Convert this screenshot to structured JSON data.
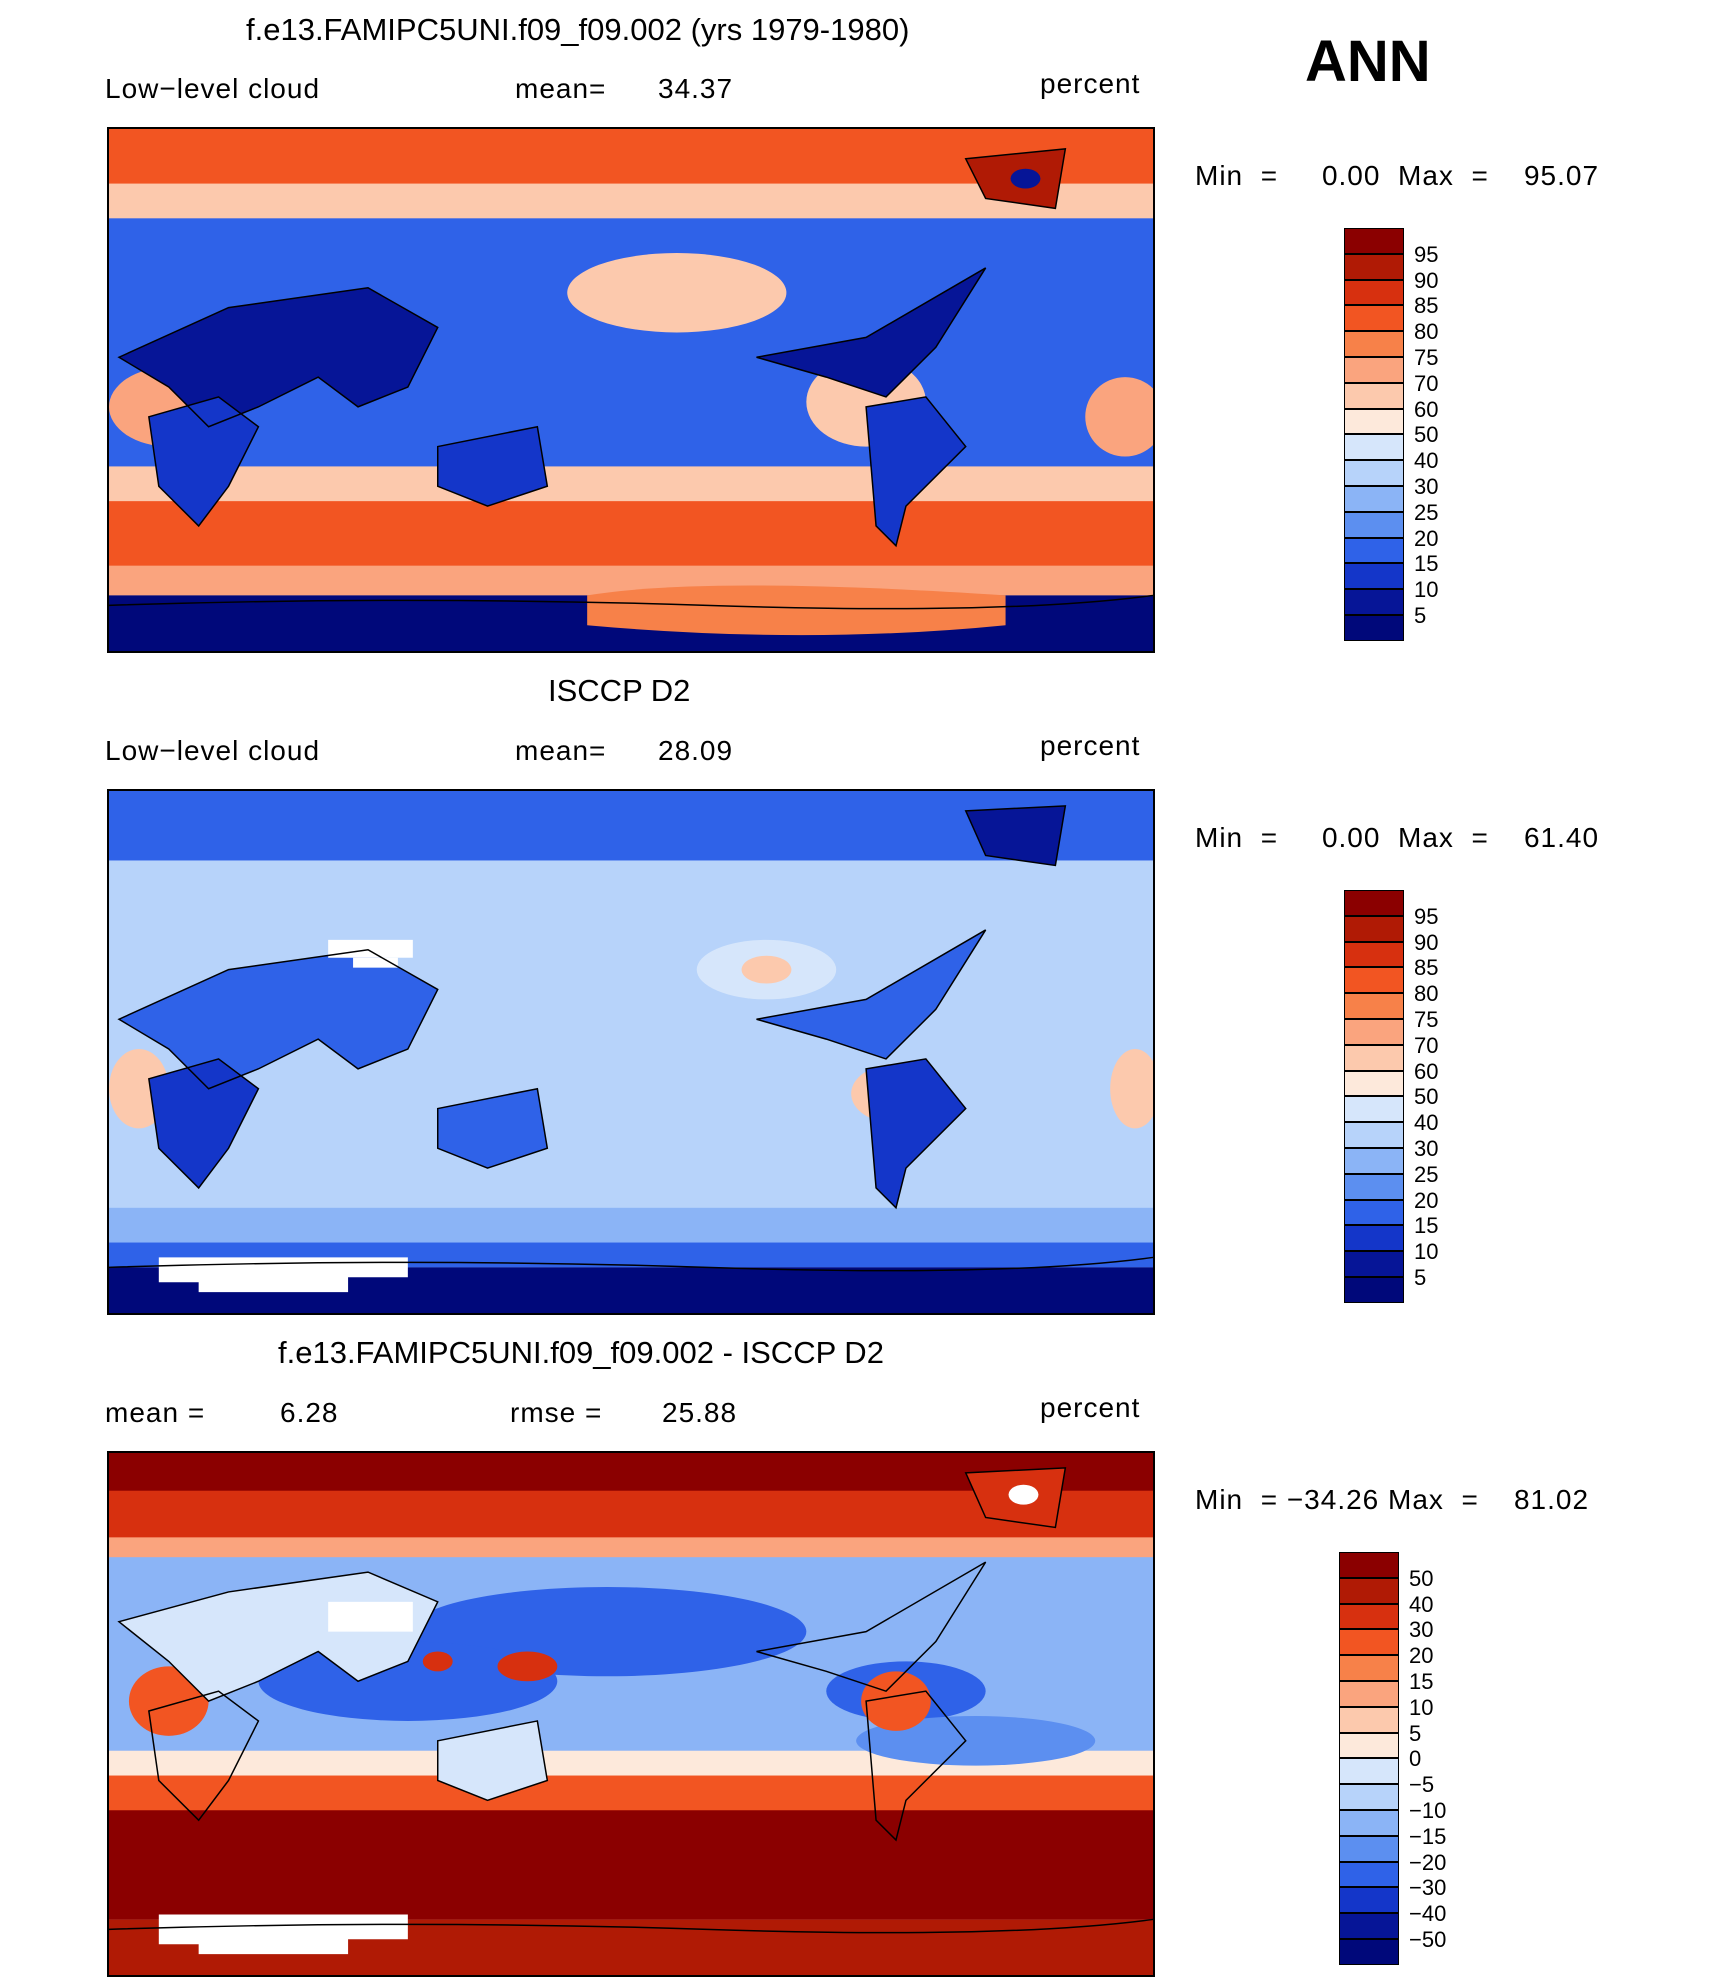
{
  "season": "ANN",
  "panels": [
    {
      "title": "f.e13.FAMIPC5UNI.f09_f09.002 (yrs 1979-1980)",
      "left_label": "Low−level cloud",
      "stat_label": "mean=",
      "stat_value": "34.37",
      "units": "percent",
      "minmax": {
        "min_label": "Min",
        "eq1": "=",
        "min": "0.00",
        "max_label": "Max",
        "eq2": "=",
        "max": "95.07"
      },
      "colorbar": {
        "levels": [
          "95",
          "90",
          "85",
          "80",
          "75",
          "70",
          "60",
          "50",
          "40",
          "30",
          "25",
          "20",
          "15",
          "10",
          "5"
        ],
        "colors": [
          "#8b0000",
          "#b01a05",
          "#d7300f",
          "#f25522",
          "#f78149",
          "#faa47e",
          "#fcc9ad",
          "#fde9db",
          "#d6e6fb",
          "#b7d3fa",
          "#8bb4f6",
          "#5c8ff0",
          "#2f62e8",
          "#1436c9",
          "#061597",
          "#00087a"
        ]
      },
      "map": {
        "field": "model low-level cloud",
        "base_color": "#2f62e8"
      }
    },
    {
      "title": "ISCCP D2",
      "left_label": "Low−level cloud",
      "stat_label": "mean=",
      "stat_value": "28.09",
      "units": "percent",
      "minmax": {
        "min_label": "Min",
        "eq1": "=",
        "min": "0.00",
        "max_label": "Max",
        "eq2": "=",
        "max": "61.40"
      },
      "colorbar": {
        "levels": [
          "95",
          "90",
          "85",
          "80",
          "75",
          "70",
          "60",
          "50",
          "40",
          "30",
          "25",
          "20",
          "15",
          "10",
          "5"
        ],
        "colors": [
          "#8b0000",
          "#b01a05",
          "#d7300f",
          "#f25522",
          "#f78149",
          "#faa47e",
          "#fcc9ad",
          "#fde9db",
          "#d6e6fb",
          "#b7d3fa",
          "#8bb4f6",
          "#5c8ff0",
          "#2f62e8",
          "#1436c9",
          "#061597",
          "#00087a"
        ]
      },
      "map": {
        "field": "observed low-level cloud",
        "base_color": "#b7d3fa"
      }
    },
    {
      "title": "f.e13.FAMIPC5UNI.f09_f09.002 - ISCCP D2",
      "left_label": "mean =",
      "left_value": "6.28",
      "stat_label": "rmse =",
      "stat_value": "25.88",
      "units": "percent",
      "minmax": {
        "min_label": "Min",
        "eq1": "=",
        "min": "−34.26",
        "max_label": "Max",
        "eq2": "=",
        "max": "81.02"
      },
      "colorbar": {
        "levels": [
          "50",
          "40",
          "30",
          "20",
          "15",
          "10",
          "5",
          "0",
          "−5",
          "−10",
          "−15",
          "−20",
          "−30",
          "−40",
          "−50"
        ],
        "colors": [
          "#8b0000",
          "#b01a05",
          "#d7300f",
          "#f25522",
          "#f78149",
          "#faa47e",
          "#fcc9ad",
          "#fde9db",
          "#d6e6fb",
          "#b7d3fa",
          "#8bb4f6",
          "#5c8ff0",
          "#2f62e8",
          "#1436c9",
          "#061597",
          "#00087a"
        ]
      },
      "map": {
        "field": "difference",
        "base_color": "#b7d3fa"
      }
    }
  ]
}
